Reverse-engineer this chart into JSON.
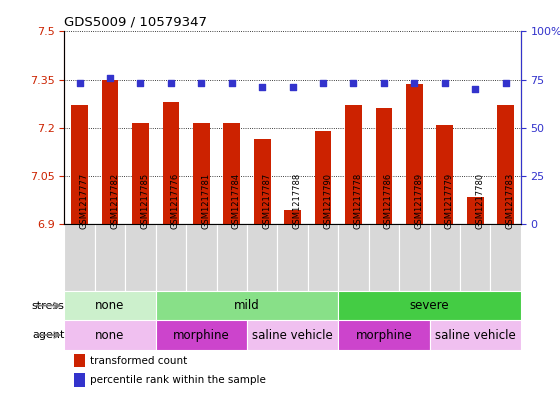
{
  "title": "GDS5009 / 10579347",
  "samples": [
    "GSM1217777",
    "GSM1217782",
    "GSM1217785",
    "GSM1217776",
    "GSM1217781",
    "GSM1217784",
    "GSM1217787",
    "GSM1217788",
    "GSM1217790",
    "GSM1217778",
    "GSM1217786",
    "GSM1217789",
    "GSM1217779",
    "GSM1217780",
    "GSM1217783"
  ],
  "bar_values": [
    7.27,
    7.35,
    7.215,
    7.28,
    7.215,
    7.215,
    7.165,
    6.945,
    7.19,
    7.27,
    7.26,
    7.335,
    7.21,
    6.985,
    7.27
  ],
  "dot_values": [
    73,
    76,
    73,
    73,
    73,
    73,
    71,
    71,
    73,
    73,
    73,
    73,
    73,
    70,
    73
  ],
  "bar_color": "#cc2200",
  "dot_color": "#3333cc",
  "ylim_left": [
    6.9,
    7.5
  ],
  "ylim_right": [
    0,
    100
  ],
  "yticks_left": [
    6.9,
    7.05,
    7.2,
    7.35,
    7.5
  ],
  "yticks_right": [
    0,
    25,
    50,
    75,
    100
  ],
  "ytick_labels_left": [
    "6.9",
    "7.05",
    "7.2",
    "7.35",
    "7.5"
  ],
  "ytick_labels_right": [
    "0",
    "25",
    "50",
    "75",
    "100%"
  ],
  "stress_groups": [
    {
      "label": "none",
      "start": 0,
      "end": 3,
      "color": "#ccf0cc"
    },
    {
      "label": "mild",
      "start": 3,
      "end": 9,
      "color": "#88e088"
    },
    {
      "label": "severe",
      "start": 9,
      "end": 15,
      "color": "#44cc44"
    }
  ],
  "agent_groups": [
    {
      "label": "none",
      "start": 0,
      "end": 3,
      "color": "#f0c0f0"
    },
    {
      "label": "morphine",
      "start": 3,
      "end": 6,
      "color": "#cc44cc"
    },
    {
      "label": "saline vehicle",
      "start": 6,
      "end": 9,
      "color": "#f0c0f0"
    },
    {
      "label": "morphine",
      "start": 9,
      "end": 12,
      "color": "#cc44cc"
    },
    {
      "label": "saline vehicle",
      "start": 12,
      "end": 15,
      "color": "#f0c0f0"
    }
  ],
  "legend_items": [
    {
      "label": "transformed count",
      "color": "#cc2200"
    },
    {
      "label": "percentile rank within the sample",
      "color": "#3333cc"
    }
  ],
  "bar_bottom": 6.9,
  "bar_width": 0.55,
  "xtick_bg_color": "#d8d8d8",
  "axis_color_left": "#cc2200",
  "axis_color_right": "#3333cc"
}
